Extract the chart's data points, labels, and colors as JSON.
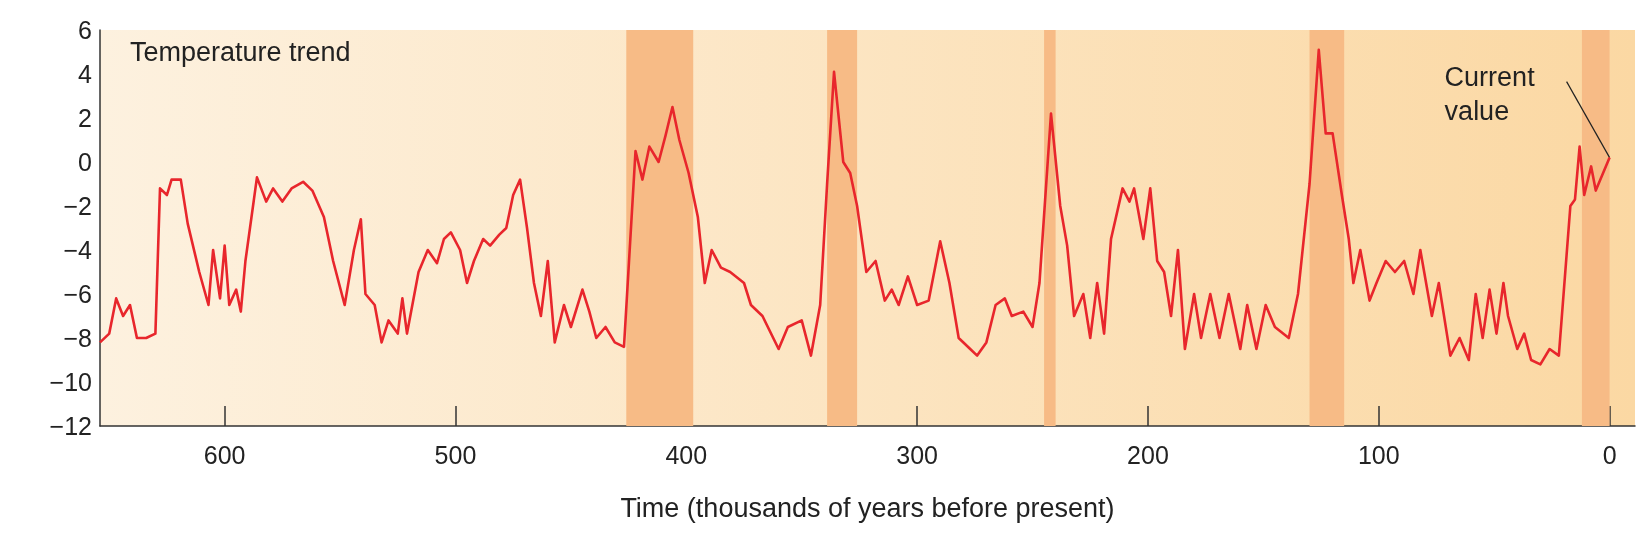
{
  "chart_data": {
    "type": "line",
    "xlabel": "Time (thousands of years before present)",
    "annotations": [
      "Temperature trend",
      {
        "text": "Current value",
        "x": 0,
        "y": 0.2
      }
    ],
    "xlim": [
      654,
      -11
    ],
    "xticks": [
      600,
      500,
      400,
      300,
      200,
      100,
      0
    ],
    "ylim": [
      -12,
      6
    ],
    "yticks": [
      -12,
      -10,
      -8,
      -6,
      -4,
      -2,
      0,
      2,
      4,
      6
    ],
    "grid": false,
    "marker": "none",
    "line_style": "solid",
    "bands": [
      {
        "axis": "x",
        "from": 426,
        "to": 397,
        "color": "#f7bb86"
      },
      {
        "axis": "x",
        "from": 339,
        "to": 326,
        "color": "#f7bb86"
      },
      {
        "axis": "x",
        "from": 245,
        "to": 240,
        "color": "#f7bb86"
      },
      {
        "axis": "x",
        "from": 130,
        "to": 115,
        "color": "#f7bb86"
      },
      {
        "axis": "x",
        "from": 12,
        "to": 0,
        "color": "#f7bb86"
      }
    ],
    "series": [
      {
        "color": "#e8262c",
        "x": [
          654,
          650,
          647,
          644,
          641,
          638,
          634,
          630,
          628,
          625,
          623,
          619,
          616,
          611,
          607,
          605,
          602,
          600,
          598,
          595,
          593,
          591,
          586,
          582,
          579,
          575,
          571,
          566,
          562,
          557,
          553,
          548,
          544,
          541,
          539,
          535,
          532,
          529,
          525,
          523,
          521,
          516,
          512,
          508,
          505,
          502,
          498,
          495,
          492,
          488,
          485,
          481,
          478,
          475,
          472,
          469,
          466,
          463,
          460,
          457,
          453,
          450,
          445,
          442,
          439,
          435,
          431,
          427,
          422,
          419,
          416,
          412,
          409,
          406,
          403,
          399,
          395,
          392,
          389,
          385,
          381,
          375,
          372,
          367,
          360,
          356,
          350,
          346,
          342,
          339,
          336,
          332,
          329,
          326,
          322,
          318,
          314,
          311,
          308,
          304,
          300,
          295,
          290,
          286,
          282,
          277,
          274,
          270,
          266,
          262,
          259,
          254,
          250,
          247,
          242,
          238,
          235,
          232,
          228,
          225,
          222,
          219,
          216,
          211,
          208,
          206,
          202,
          199,
          196,
          193,
          190,
          187,
          184,
          180,
          177,
          173,
          169,
          165,
          160,
          157,
          153,
          149,
          145,
          139,
          135,
          130,
          126,
          123,
          120,
          116,
          113,
          111,
          108,
          104,
          101,
          97,
          93,
          89,
          85,
          82,
          77,
          74,
          69,
          65,
          61,
          58,
          55,
          52,
          49,
          46,
          44,
          40,
          37,
          34,
          30,
          26,
          22,
          17,
          15,
          13,
          11,
          8,
          6,
          0
        ],
        "values": [
          -8.2,
          -7.8,
          -6.2,
          -7,
          -6.5,
          -8,
          -8,
          -7.8,
          -1.2,
          -1.5,
          -0.8,
          -0.8,
          -2.8,
          -5,
          -6.5,
          -4,
          -6.2,
          -3.8,
          -6.5,
          -5.8,
          -6.8,
          -4.5,
          -0.7,
          -1.8,
          -1.2,
          -1.8,
          -1.2,
          -0.9,
          -1.3,
          -2.5,
          -4.5,
          -6.5,
          -4,
          -2.6,
          -6,
          -6.5,
          -8.2,
          -7.2,
          -7.8,
          -6.2,
          -7.8,
          -5,
          -4,
          -4.6,
          -3.5,
          -3.2,
          -4,
          -5.5,
          -4.5,
          -3.5,
          -3.8,
          -3.3,
          -3,
          -1.5,
          -0.8,
          -3,
          -5.5,
          -7,
          -4.5,
          -8.2,
          -6.5,
          -7.5,
          -5.8,
          -6.8,
          -8,
          -7.5,
          -8.2,
          -8.4,
          0.5,
          -0.8,
          0.7,
          0,
          1.2,
          2.5,
          1,
          -0.5,
          -2.5,
          -5.5,
          -4,
          -4.8,
          -5,
          -5.5,
          -6.5,
          -7,
          -8.5,
          -7.5,
          -7.2,
          -8.8,
          -6.5,
          -1,
          4.1,
          0,
          -0.5,
          -2,
          -5,
          -4.5,
          -6.3,
          -5.8,
          -6.5,
          -5.2,
          -6.5,
          -6.3,
          -3.6,
          -5.5,
          -8,
          -8.5,
          -8.8,
          -8.2,
          -6.5,
          -6.2,
          -7,
          -6.8,
          -7.5,
          -5.5,
          2.2,
          -2,
          -3.8,
          -7,
          -6,
          -8,
          -5.5,
          -7.8,
          -3.5,
          -1.2,
          -1.8,
          -1.2,
          -3.5,
          -1.2,
          -4.5,
          -5,
          -7,
          -4,
          -8.5,
          -6,
          -8,
          -6,
          -8,
          -6,
          -8.5,
          -6.5,
          -8.5,
          -6.5,
          -7.5,
          -8,
          -6,
          -1,
          5.1,
          1.3,
          1.3,
          -1.5,
          -3.5,
          -5.5,
          -4,
          -6.3,
          -5.5,
          -4.5,
          -5,
          -4.5,
          -6,
          -4,
          -7,
          -5.5,
          -8.8,
          -8,
          -9,
          -6,
          -8,
          -5.8,
          -7.8,
          -5.5,
          -7,
          -8.5,
          -7.8,
          -9,
          -9.2,
          -8.5,
          -8.8,
          -2,
          -1.7,
          0.7,
          -1.5,
          -0.2,
          -1.3,
          0.2
        ]
      }
    ]
  }
}
